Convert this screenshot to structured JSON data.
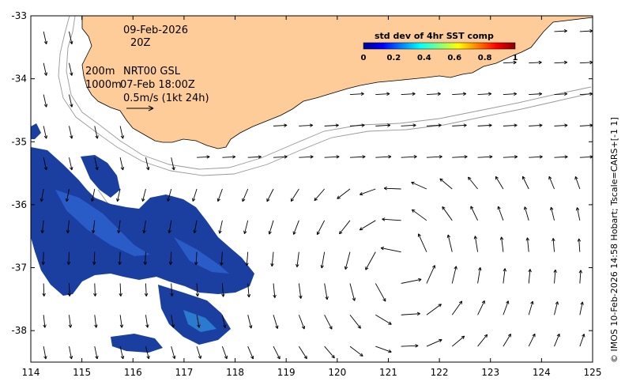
{
  "date_label": "09-Feb-2026",
  "time_label": "20Z",
  "depth_line1": "200m",
  "depth_line2": "1000m",
  "product_label": "NRT00 GSL",
  "product_time": "07-Feb 18:00Z",
  "scale_label": "0.5m/s (1kt 24h)",
  "colorbar": {
    "title": "std dev of 4hr SST comp",
    "ticks": [
      "0",
      "0.2",
      "0.4",
      "0.6",
      "0.8",
      "1"
    ],
    "colors": [
      "#00008f",
      "#0000ff",
      "#0080ff",
      "#00ffff",
      "#80ff80",
      "#ffff00",
      "#ff8000",
      "#ff0000",
      "#800000"
    ]
  },
  "x_ticks": [
    "114",
    "115",
    "116",
    "117",
    "118",
    "119",
    "120",
    "121",
    "122",
    "123",
    "124",
    "125"
  ],
  "y_ticks": [
    "-33",
    "-34",
    "-35",
    "-36",
    "-37",
    "-38"
  ],
  "credit": "© IMOS 10-Feb-2026 14:58 Hobart; Tscale=CARS+[-1 1]",
  "colors": {
    "land": "#fdcc99",
    "contour": "#999999",
    "sst_dark": "#1a3fa0",
    "sst_mid": "#2a5cc8"
  },
  "map_extent": {
    "lon": [
      114,
      125
    ],
    "lat": [
      -38.5,
      -33
    ]
  }
}
